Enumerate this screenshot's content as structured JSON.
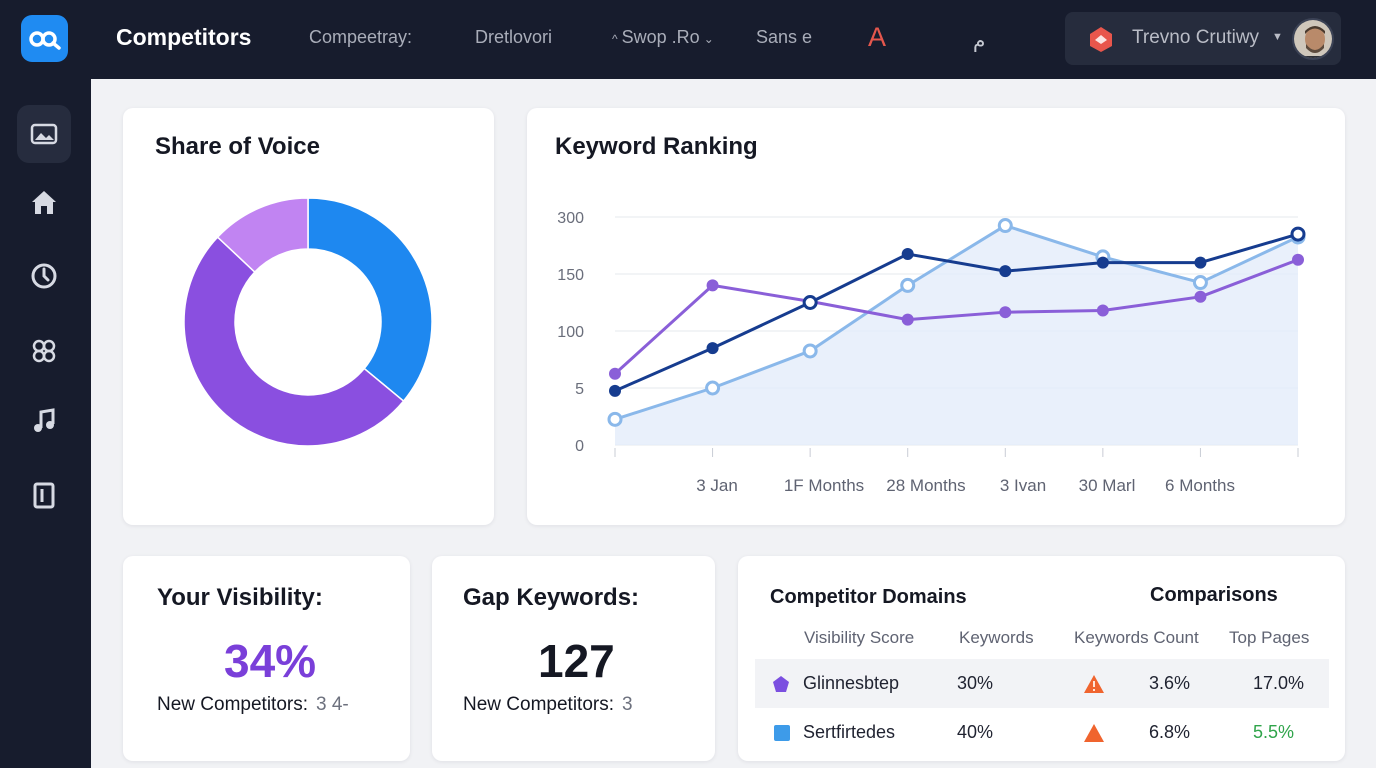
{
  "header": {
    "title": "Competitors",
    "nav": [
      "Compeetray:",
      "Dretlovori",
      "Swop .Ro",
      "Sans e",
      "A",
      "م"
    ],
    "user_name": "Trevno Crutiwy"
  },
  "sidebar": {
    "items": [
      {
        "icon": "image-icon",
        "active": true
      },
      {
        "icon": "home-icon"
      },
      {
        "icon": "clock-icon"
      },
      {
        "icon": "network-icon"
      },
      {
        "icon": "music-note-icon"
      },
      {
        "icon": "document-icon"
      }
    ]
  },
  "share_of_voice": {
    "title": "Share of Voice",
    "chart_data": {
      "type": "pie",
      "values": [
        36,
        51,
        13
      ],
      "colors": [
        "#1e88f0",
        "#8a4fe0",
        "#c184f2"
      ]
    }
  },
  "keyword_ranking": {
    "title": "Keyword Ranking",
    "chart_data": {
      "type": "line",
      "y_tick_labels": [
        "0",
        "5",
        "100",
        "150",
        "300"
      ],
      "x_tick_labels": [
        "3 Jan",
        "1F Months",
        "28 Months",
        "3 Ivan",
        "30 Marl",
        "6 Months"
      ],
      "grid": true,
      "series": [
        {
          "color": "#8a5fd8",
          "values": [
            1.25,
            2.8,
            2.52,
            2.2,
            2.33,
            2.36,
            2.6,
            3.25
          ]
        },
        {
          "color": "#163c8f",
          "values": [
            0.95,
            1.7,
            2.5,
            3.35,
            3.05,
            3.2,
            3.2,
            3.7
          ]
        },
        {
          "color": "#8ab8ea",
          "values": [
            0.45,
            1.0,
            1.65,
            2.8,
            3.85,
            3.3,
            2.85,
            3.65
          ]
        }
      ]
    }
  },
  "visibility": {
    "title": "Your Visibility:",
    "value": "34%",
    "sub_label": "New Competitors:",
    "sub_value": "3 4-"
  },
  "gap_keywords": {
    "title": "Gap Keywords:",
    "value": "127",
    "sub_label": "New Competitors:",
    "sub_value": "3"
  },
  "competitor_domains": {
    "title": "Competitor Domains",
    "comparisons_label": "Comparisons",
    "columns": [
      "Visibility Score",
      "Keywords",
      "Keywords Count",
      "Top Pages"
    ],
    "rows": [
      {
        "icon": "pentagon-icon",
        "icon_color": "#7b4fe0",
        "name": "Glinnesbtep",
        "visibility": "30%",
        "trend_icon": "warning-icon",
        "keywords_count": "3.6%",
        "top_pages": "17.0%"
      },
      {
        "icon": "square-icon",
        "icon_color": "#3d9be9",
        "name": "Sertfirtedes",
        "visibility": "40%",
        "trend_icon": "warning-icon",
        "keywords_count": "6.8%",
        "top_pages": "5.5%"
      }
    ]
  },
  "colors": {
    "sidebar_bg": "#171c2d",
    "accent_blue": "#1f8bf2",
    "purple": "#7a3fd9",
    "warning": "#f0642e",
    "positive": "#2fa44a"
  }
}
